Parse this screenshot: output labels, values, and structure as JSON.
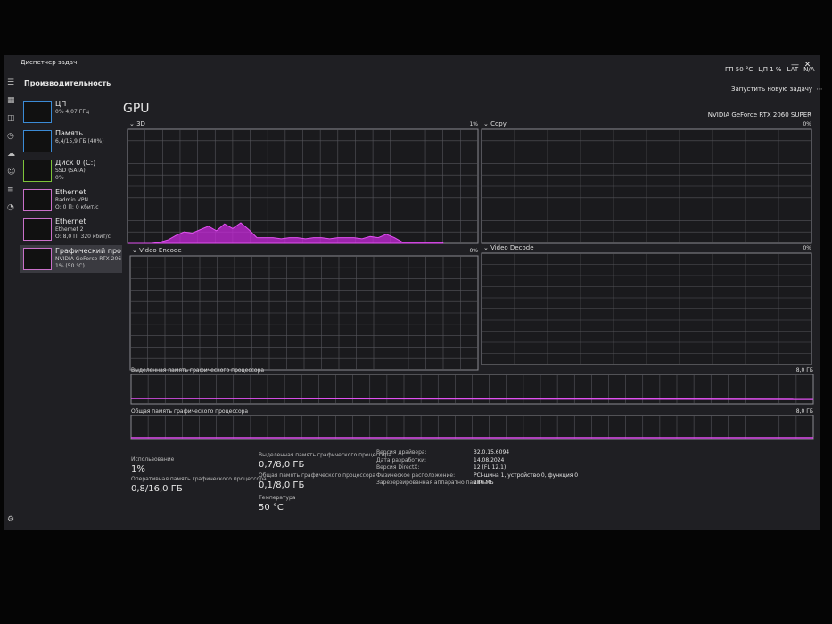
{
  "window": {
    "title": "Диспетчер задач",
    "tray": [
      "ГП 50 °C",
      "ЦП 1 %",
      "LAT",
      "N/A"
    ]
  },
  "header": {
    "title": "Производительность",
    "action": "Запустить новую задачу"
  },
  "sidebar": [
    {
      "name": "ЦП",
      "lines": [
        "0% 4,07 ГГц"
      ]
    },
    {
      "name": "Память",
      "lines": [
        "6,4/15,9 ГБ (40%)"
      ]
    },
    {
      "name": "Диск 0 (C:)",
      "lines": [
        "SSD (SATA)",
        "0%"
      ]
    },
    {
      "name": "Ethernet",
      "lines": [
        "Radmin VPN",
        "О: 0 П: 0 кбит/с"
      ]
    },
    {
      "name": "Ethernet",
      "lines": [
        "Ethernet 2",
        "О: 8,0 П: 320 кбит/с"
      ]
    },
    {
      "name": "Графический про",
      "lines": [
        "NVIDIA GeForce RTX 206",
        "1% (50 °C)"
      ]
    }
  ],
  "main": {
    "title": "GPU",
    "device": "NVIDIA GeForce RTX 2060 SUPER"
  },
  "graphs": [
    {
      "label": "3D",
      "max_label": "1%",
      "ylim": [
        0,
        1
      ],
      "history": [
        0,
        0,
        0,
        0,
        0.01,
        0.03,
        0.07,
        0.1,
        0.09,
        0.12,
        0.15,
        0.11,
        0.17,
        0.13,
        0.18,
        0.12,
        0.05,
        0.05,
        0.05,
        0.04,
        0.05,
        0.05,
        0.04,
        0.05,
        0.05,
        0.04,
        0.05,
        0.05,
        0.05,
        0.04,
        0.06,
        0.05,
        0.08,
        0.05,
        0.01,
        0.01,
        0.01,
        0.01,
        0.01,
        0.01
      ]
    },
    {
      "label": "Copy",
      "max_label": "0%"
    },
    {
      "label": "Video Encode",
      "max_label": "0%"
    },
    {
      "label": "Video Decode",
      "max_label": "0%"
    }
  ],
  "memory_graphs": [
    {
      "label": "Выделенная память графического процессора",
      "max_label": "8,0 ГБ"
    },
    {
      "label": "Общая память графического процессора",
      "max_label": "8,0 ГБ"
    }
  ],
  "stats": [
    {
      "label": "Использование",
      "value": "1%"
    },
    {
      "label": "Оперативная память графического процессора",
      "value": "0,8/16,0 ГБ"
    },
    {
      "label": "Выделенная память графического процессора",
      "value": "0,7/8,0 ГБ"
    },
    {
      "label": "Общая память графического процессора",
      "value": "0,1/8,0 ГБ"
    },
    {
      "label": "Температура",
      "value": "50 °C"
    }
  ],
  "details": [
    {
      "label": "Версия драйвера:",
      "value": "32.0.15.6094"
    },
    {
      "label": "Дата разработки:",
      "value": "14.08.2024"
    },
    {
      "label": "Версия DirectX:",
      "value": "12 (FL 12.1)"
    },
    {
      "label": "Физическое расположение:",
      "value": "PCI-шина 1, устройство 0, функция 0"
    },
    {
      "label": "Зарезервированная аппаратно память:",
      "value": "186 МБ"
    }
  ]
}
